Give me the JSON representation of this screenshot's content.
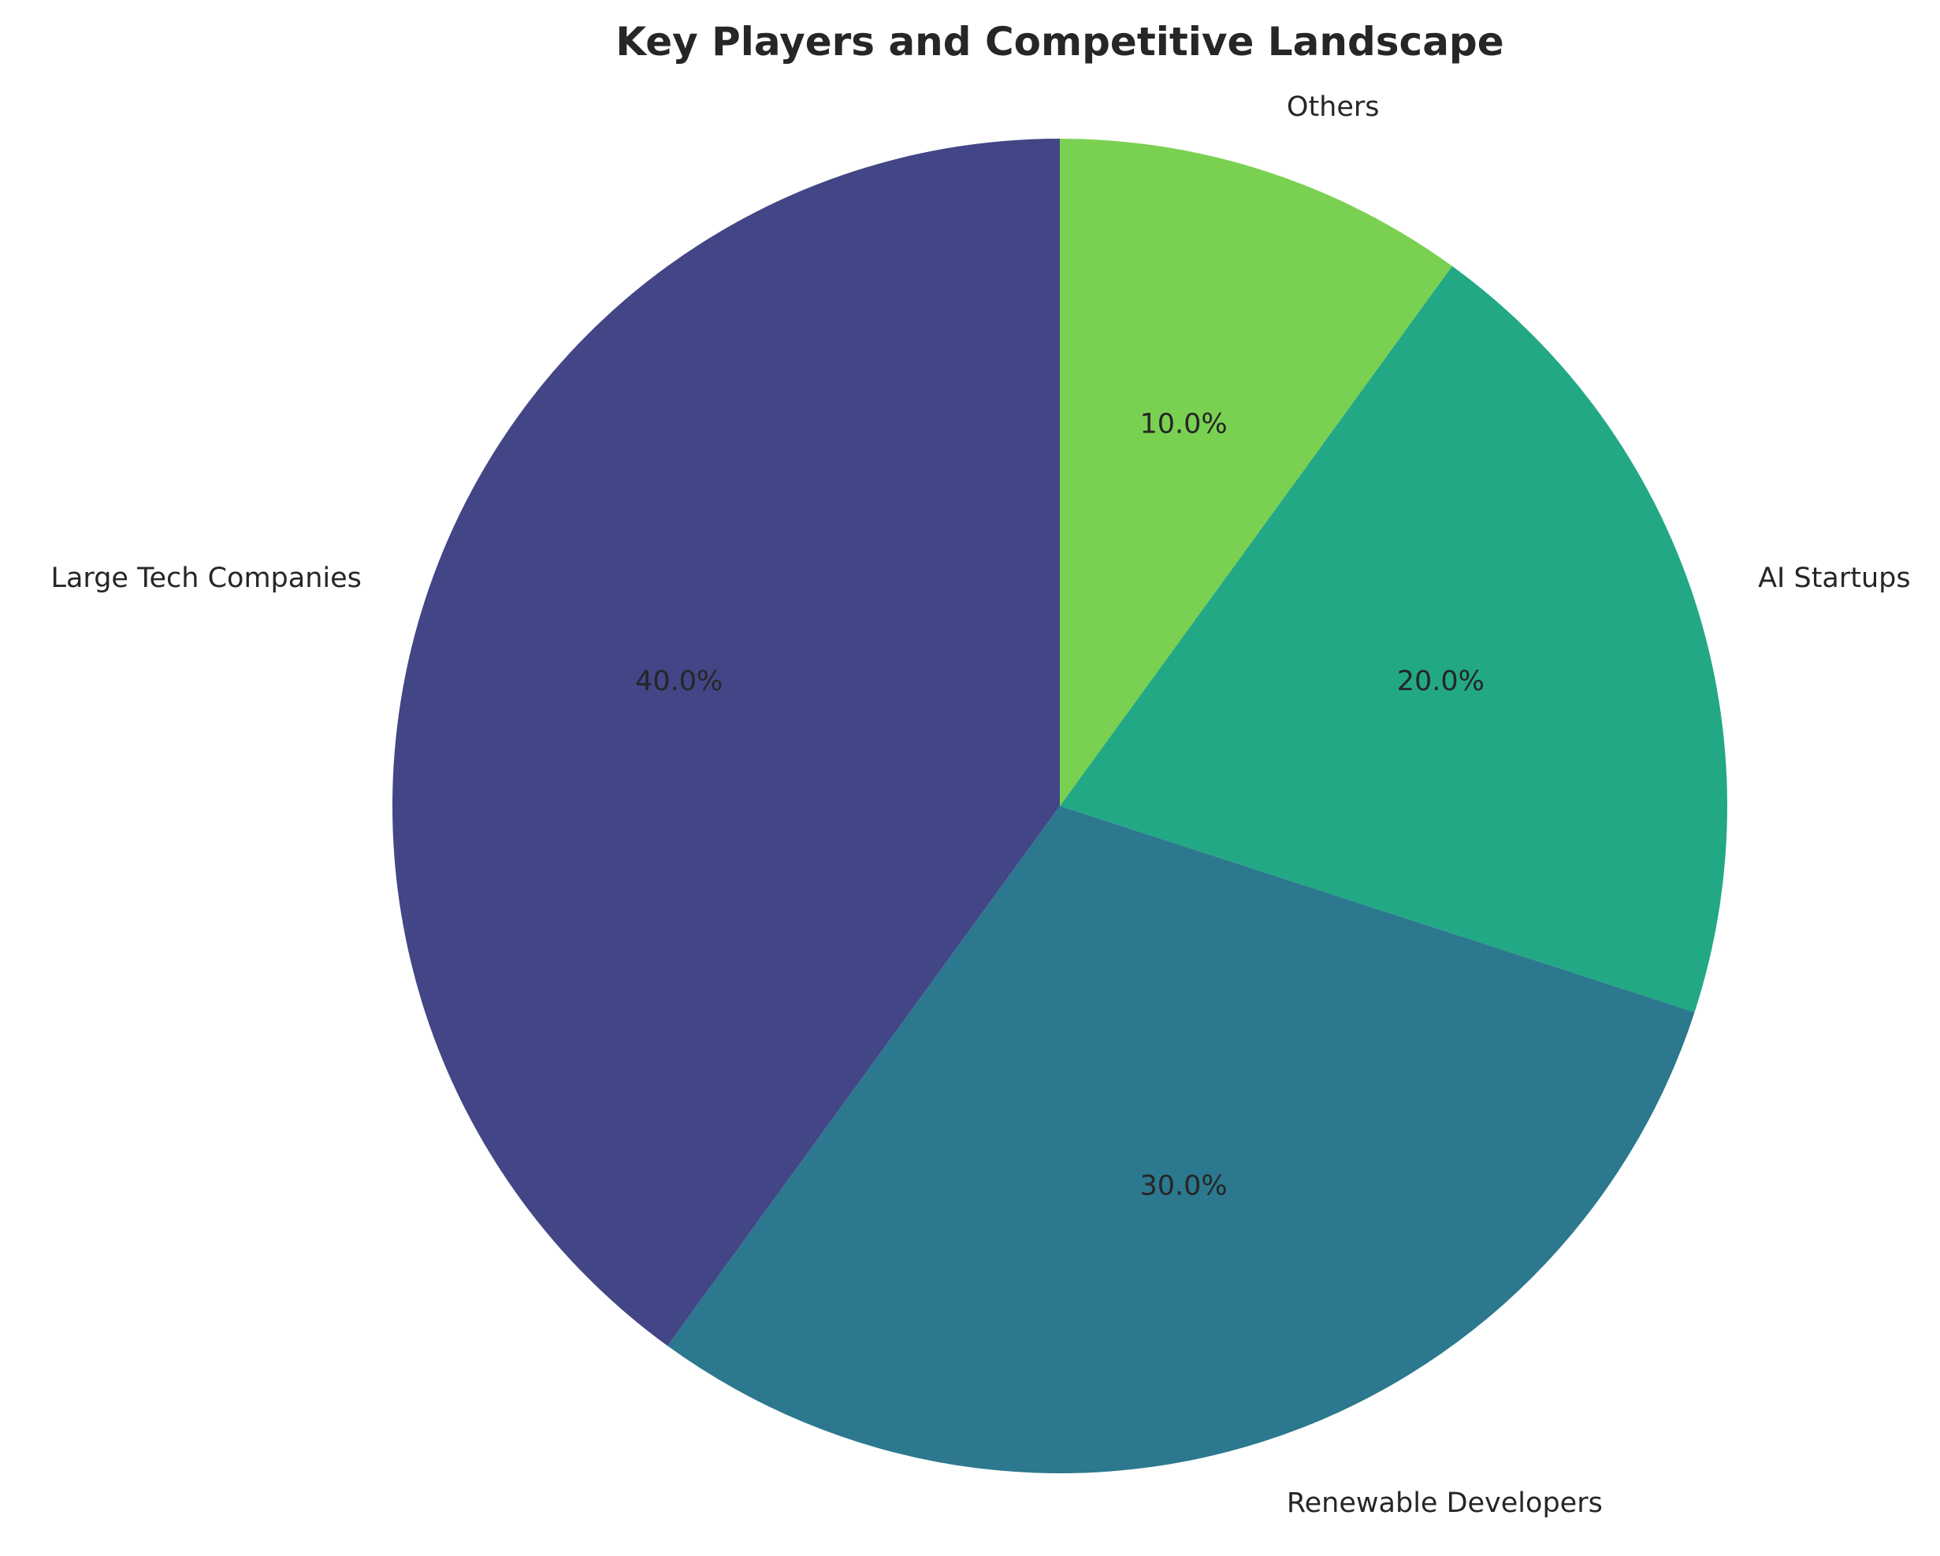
{
  "chart_data": {
    "type": "pie",
    "title": "Key Players and Competitive Landscape",
    "categories": [
      "Large Tech Companies",
      "Renewable Developers",
      "AI Startups",
      "Others"
    ],
    "values": [
      40.0,
      30.0,
      20.0,
      10.0
    ],
    "value_labels": [
      "40.0%",
      "30.0%",
      "20.0%",
      "10.0%"
    ],
    "colors": [
      "#424686",
      "#2C788E",
      "#22A884",
      "#7AD151"
    ],
    "start_angle_deg": 90,
    "direction": "counterclockwise",
    "legend": "none"
  }
}
